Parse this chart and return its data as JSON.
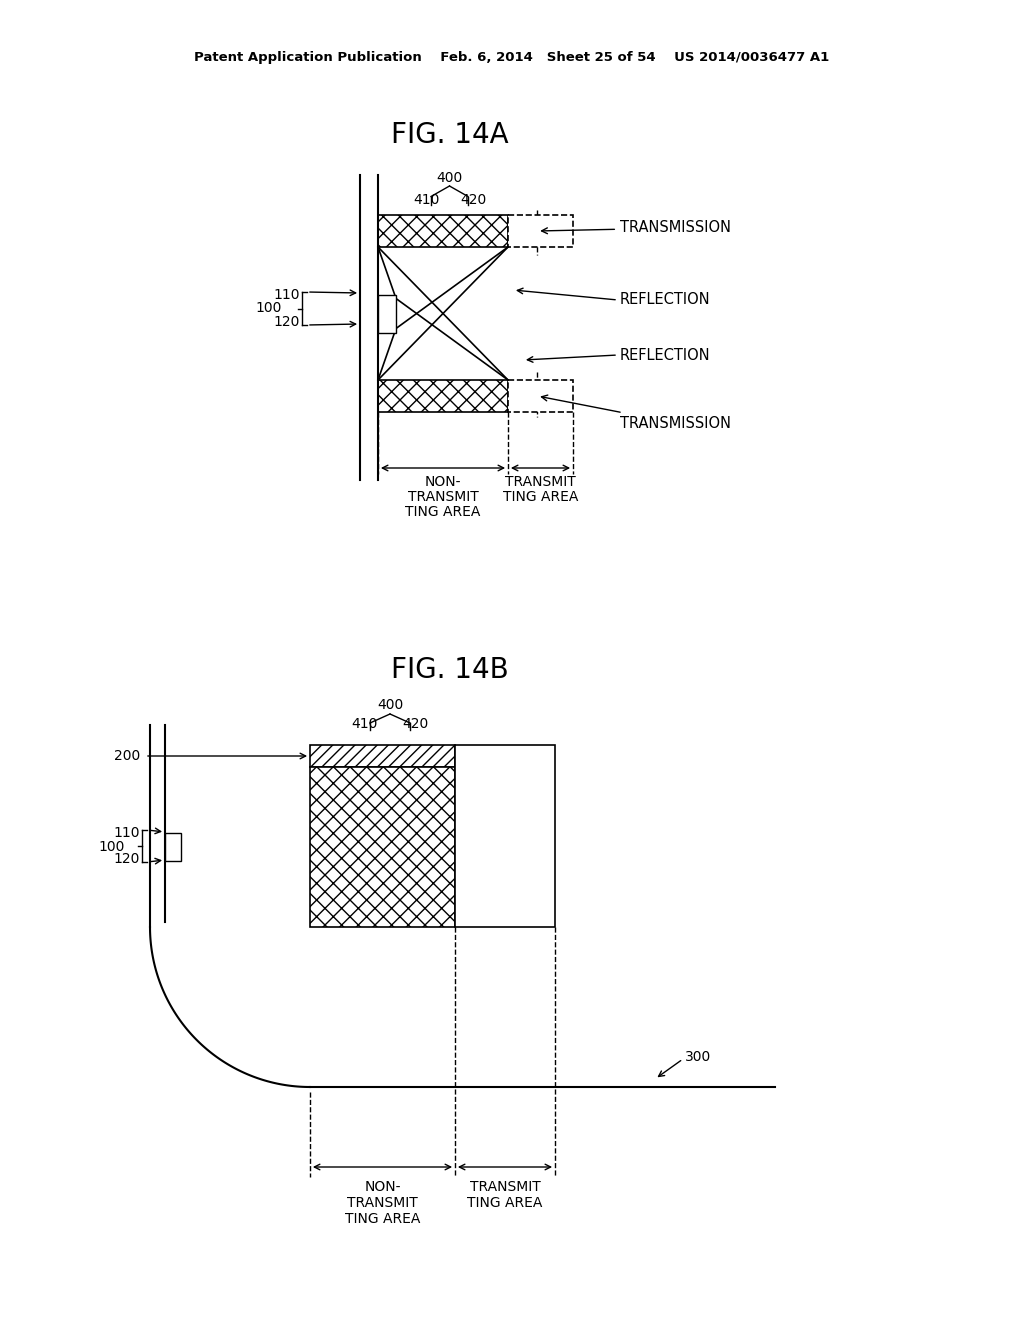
{
  "bg_color": "#ffffff",
  "header_text": "Patent Application Publication    Feb. 6, 2014   Sheet 25 of 54    US 2014/0036477 A1",
  "fig_title_A": "FIG. 14A",
  "fig_title_B": "FIG. 14B"
}
